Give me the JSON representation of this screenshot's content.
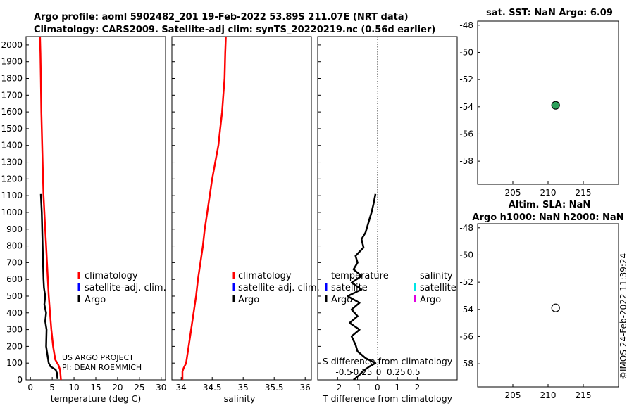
{
  "header": {
    "title_line1": "Argo profile: aoml 5902482_201 19-Feb-2022 53.89S 211.07E (NRT data)",
    "title_line2": "Climatology: CARS2009. Satellite-adj clim: synTS_20220219.nc (0.56d earlier)"
  },
  "credit": {
    "line1": "US ARGO PROJECT",
    "line2": "PI: DEAN ROEMMICH"
  },
  "timestamp": "©IMOS 24-Feb-2022 11:39:24",
  "legend_left": {
    "climatology": "climatology",
    "satellite": "satellite-adj. clim.",
    "argo": "Argo"
  },
  "legend_diff": {
    "temperature": "temperature",
    "salinity": "salinity",
    "t_satellite": "satellite",
    "t_argo": "Argo",
    "s_satellite": "satellite",
    "s_argo": "Argo"
  },
  "colors": {
    "climatology": "#ff0000",
    "satellite": "#0000ff",
    "argo": "#000000",
    "sal_satellite": "#00e5e5",
    "sal_argo": "#e000e0",
    "sst_marker": "#2ca05a"
  },
  "chart_data": [
    {
      "type": "line",
      "name": "temperature",
      "xlabel": "temperature (deg C)",
      "xlim": [
        -1,
        31
      ],
      "ylim": [
        2050,
        0
      ],
      "xticks": [
        0,
        5,
        10,
        15,
        20,
        25,
        30
      ],
      "yticks": [
        0,
        100,
        200,
        300,
        400,
        500,
        600,
        700,
        800,
        900,
        1000,
        1100,
        1200,
        1300,
        1400,
        1500,
        1600,
        1700,
        1800,
        1900,
        2000
      ],
      "series": [
        {
          "name": "climatology",
          "color": "#ff0000",
          "x": [
            7.0,
            6.9,
            6.8,
            6.4,
            5.7,
            5.2,
            4.8,
            4.5,
            4.2,
            4.0,
            3.8,
            3.6,
            3.4,
            3.2,
            3.0,
            2.9,
            2.8,
            2.7,
            2.6,
            2.5,
            2.4,
            2.3,
            2.2
          ],
          "y": [
            0,
            30,
            60,
            90,
            120,
            200,
            300,
            400,
            500,
            600,
            700,
            800,
            900,
            1000,
            1100,
            1200,
            1300,
            1400,
            1500,
            1600,
            1800,
            1950,
            2050
          ]
        },
        {
          "name": "Argo",
          "color": "#000000",
          "x": [
            6.2,
            6.1,
            5.8,
            4.6,
            4.2,
            3.9,
            3.6,
            3.7,
            3.4,
            3.6,
            3.2,
            3.4,
            3.1,
            3.0,
            2.9,
            2.8,
            2.7,
            2.6,
            2.5,
            2.4
          ],
          "y": [
            5,
            40,
            60,
            80,
            100,
            150,
            200,
            300,
            350,
            400,
            450,
            500,
            550,
            600,
            700,
            800,
            900,
            1000,
            1050,
            1110
          ]
        }
      ]
    },
    {
      "type": "line",
      "name": "salinity",
      "xlabel": "salinity",
      "xlim": [
        33.85,
        36.1
      ],
      "ylim": [
        2050,
        0
      ],
      "xticks": [
        34,
        34.5,
        35,
        35.5,
        36
      ],
      "series": [
        {
          "name": "climatology",
          "color": "#ff0000",
          "x": [
            34.02,
            34.02,
            34.04,
            34.08,
            34.12,
            34.16,
            34.2,
            34.24,
            34.27,
            34.31,
            34.35,
            34.38,
            34.42,
            34.46,
            34.5,
            34.55,
            34.6,
            34.63,
            34.66,
            34.68,
            34.7,
            34.71,
            34.72
          ],
          "y": [
            0,
            50,
            70,
            100,
            200,
            300,
            400,
            500,
            600,
            700,
            800,
            900,
            1000,
            1100,
            1200,
            1300,
            1400,
            1500,
            1600,
            1700,
            1800,
            1950,
            2050
          ]
        },
        {
          "name": "Argo",
          "color": "#000000",
          "x": [],
          "y": []
        }
      ]
    },
    {
      "type": "line",
      "name": "difference",
      "xlabel": "T difference from climatology",
      "x2label": "S difference from climatology",
      "xlim": [
        -3,
        4
      ],
      "ylim": [
        2050,
        0
      ],
      "xticks": [
        -2,
        -1,
        0,
        1,
        2
      ],
      "x2ticks": [
        -0.5,
        -0.25,
        0,
        0.25,
        0.5
      ],
      "x2ticklabels": [
        "-0.5",
        "-0.25",
        "0",
        "0.25",
        "0.5"
      ],
      "series": [
        {
          "name": "Argo temperature difference",
          "color": "#000000",
          "x": [
            -1.2,
            -0.9,
            -0.7,
            -0.4,
            -0.1,
            -0.6,
            -1.0,
            -1.1,
            -1.3,
            -0.9,
            -1.4,
            -1.0,
            -1.3,
            -0.9,
            -1.5,
            -0.8,
            -1.3,
            -0.8,
            -1.2,
            -1.0,
            -1.1,
            -0.7,
            -0.8,
            -0.6,
            -0.5,
            -0.4,
            -0.3,
            -0.2,
            -0.1
          ],
          "y": [
            0,
            30,
            55,
            80,
            100,
            130,
            170,
            210,
            260,
            300,
            340,
            380,
            420,
            460,
            500,
            540,
            580,
            620,
            660,
            700,
            740,
            790,
            840,
            880,
            920,
            960,
            1000,
            1050,
            1110
          ]
        }
      ]
    },
    {
      "type": "scatter",
      "name": "map_sst",
      "title": "sat. SST: NaN Argo: 6.09",
      "xlim": [
        200,
        220
      ],
      "ylim": [
        -59.7,
        -47.7
      ],
      "xticks": [
        205,
        210,
        215
      ],
      "yticks": [
        -48,
        -50,
        -52,
        -54,
        -56,
        -58
      ],
      "points": [
        {
          "x": 211.07,
          "y": -53.89,
          "fill": "#2ca05a"
        }
      ]
    },
    {
      "type": "scatter",
      "name": "map_sla",
      "title": "Altim. SLA: NaN",
      "subtitle": "Argo h1000: NaN h2000: NaN",
      "xlim": [
        200,
        220
      ],
      "ylim": [
        -59.7,
        -47.7
      ],
      "xticks": [
        205,
        210,
        215
      ],
      "yticks": [
        -48,
        -50,
        -52,
        -54,
        -56,
        -58
      ],
      "points": [
        {
          "x": 211.07,
          "y": -53.89,
          "fill": "#ffffff"
        }
      ]
    }
  ]
}
